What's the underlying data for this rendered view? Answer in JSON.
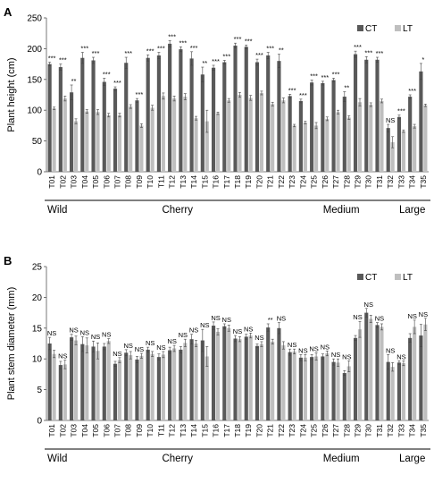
{
  "chart_data": [
    {
      "panel": "A",
      "type": "bar",
      "ylabel": "Plant height (cm)",
      "ylim": [
        0,
        250
      ],
      "yticks": [
        0,
        50,
        100,
        150,
        200,
        250
      ],
      "legend_position": "top-right",
      "categories": [
        "T01",
        "T02",
        "T03",
        "T04",
        "T05",
        "T06",
        "T07",
        "T08",
        "T09",
        "T10",
        "T11",
        "T12",
        "T13",
        "T14",
        "T15",
        "T16",
        "T17",
        "T18",
        "T19",
        "T20",
        "T21",
        "T22",
        "T23",
        "T24",
        "T25",
        "T26",
        "T27",
        "T28",
        "T29",
        "T30",
        "T31",
        "T32",
        "T33",
        "T34",
        "T35"
      ],
      "series": [
        {
          "name": "CT",
          "color": "#595959",
          "values": [
            175,
            170,
            129,
            185,
            181,
            146,
            135,
            177,
            116,
            185,
            189,
            208,
            199,
            184,
            158,
            169,
            178,
            205,
            203,
            178,
            189,
            180,
            123,
            115,
            145,
            144,
            149,
            122,
            191,
            182,
            182,
            71,
            89,
            122,
            163
          ],
          "errors": [
            3,
            5,
            12,
            9,
            5,
            6,
            3,
            9,
            3,
            5,
            5,
            5,
            4,
            11,
            12,
            4,
            3,
            4,
            3,
            5,
            5,
            11,
            3,
            3,
            4,
            3,
            3,
            8,
            5,
            5,
            4,
            6,
            3,
            3,
            13
          ]
        },
        {
          "name": "LT",
          "color": "#bfbfbf",
          "values": [
            103,
            119,
            82,
            98,
            97,
            92,
            92,
            106,
            75,
            104,
            123,
            119,
            122,
            87,
            82,
            95,
            116,
            125,
            120,
            128,
            110,
            116,
            75,
            80,
            75,
            86,
            97,
            88,
            113,
            109,
            115,
            48,
            66,
            74,
            108
          ],
          "errors": [
            2,
            4,
            4,
            3,
            4,
            3,
            3,
            3,
            3,
            4,
            5,
            4,
            5,
            3,
            18,
            2,
            3,
            4,
            4,
            3,
            3,
            4,
            2,
            2,
            5,
            3,
            3,
            3,
            6,
            3,
            3,
            9,
            2,
            3,
            2
          ]
        }
      ],
      "significance": [
        "***",
        "***",
        "**",
        "***",
        "***",
        "***",
        "***",
        "***",
        "***",
        "***",
        "***",
        "***",
        "***",
        "***",
        "**",
        "***",
        "***",
        "***",
        "***",
        "***",
        "***",
        "**",
        "***",
        "***",
        "***",
        "***",
        "***",
        "**",
        "***",
        "***",
        "***",
        "NS",
        "***",
        "***",
        "*"
      ],
      "groups": [
        {
          "label": "Wild",
          "start": 0,
          "end": 1
        },
        {
          "label": "Cherry",
          "start": 2,
          "end": 21
        },
        {
          "label": "Medium",
          "start": 22,
          "end": 31
        },
        {
          "label": "Large",
          "start": 32,
          "end": 34
        }
      ]
    },
    {
      "panel": "B",
      "type": "bar",
      "ylabel": "Plant stem diameter (mm)",
      "ylim": [
        0,
        25
      ],
      "yticks": [
        0,
        5,
        10,
        15,
        20,
        25
      ],
      "legend_position": "top-right",
      "categories": [
        "T01",
        "T02",
        "T03",
        "T04",
        "T05",
        "T06",
        "T07",
        "T08",
        "T09",
        "T10",
        "T11",
        "T12",
        "T13",
        "T14",
        "T15",
        "T16",
        "T17",
        "T18",
        "T19",
        "T20",
        "T21",
        "T22",
        "T23",
        "T24",
        "T25",
        "T26",
        "T27",
        "T28",
        "T29",
        "T30",
        "T31",
        "T32",
        "T33",
        "T34",
        "T35"
      ],
      "series": [
        {
          "name": "CT",
          "color": "#595959",
          "values": [
            12.5,
            9.0,
            13.5,
            12.4,
            12.0,
            12.0,
            9.2,
            11.0,
            9.9,
            11.5,
            10.3,
            11.4,
            11.5,
            13.2,
            13.0,
            15.4,
            15.3,
            13.3,
            13.6,
            12.1,
            15.1,
            15.0,
            11.1,
            10.2,
            10.3,
            10.4,
            9.5,
            7.7,
            13.4,
            17.5,
            15.5,
            9.5,
            9.4,
            13.4,
            13.8
          ],
          "errors": [
            1.0,
            0.6,
            0.5,
            1.2,
            0.9,
            0.5,
            0.4,
            0.5,
            0.5,
            0.4,
            0.5,
            0.5,
            0.5,
            0.8,
            1.8,
            0.6,
            0.4,
            0.5,
            0.4,
            0.3,
            0.6,
            0.9,
            0.5,
            0.5,
            0.4,
            0.4,
            0.5,
            0.4,
            0.4,
            0.7,
            0.4,
            1.2,
            0.3,
            0.7,
            1.8
          ]
        },
        {
          "name": "LT",
          "color": "#bfbfbf",
          "values": [
            10.8,
            9.1,
            13.0,
            12.2,
            11.3,
            12.9,
            9.8,
            10.6,
            10.5,
            10.8,
            10.7,
            11.7,
            12.6,
            12.5,
            10.4,
            14.4,
            15.0,
            13.2,
            13.8,
            12.4,
            12.8,
            12.2,
            11.2,
            10.2,
            10.4,
            10.9,
            9.4,
            8.8,
            14.8,
            16.5,
            15.2,
            8.7,
            9.3,
            15.2,
            15.6
          ],
          "errors": [
            0.6,
            0.7,
            0.7,
            1.2,
            1.3,
            0.4,
            0.4,
            0.6,
            0.4,
            0.4,
            0.5,
            0.5,
            0.6,
            0.5,
            1.6,
            0.5,
            0.5,
            0.4,
            0.4,
            0.4,
            0.4,
            0.6,
            0.4,
            0.5,
            0.6,
            0.4,
            0.6,
            0.9,
            1.3,
            0.6,
            0.5,
            0.7,
            0.4,
            1.1,
            1.0
          ]
        }
      ],
      "significance": [
        "NS",
        "NS",
        "NS",
        "NS",
        "NS",
        "NS",
        "NS",
        "NS",
        "NS",
        "NS",
        "NS",
        "NS",
        "NS",
        "NS",
        "NS",
        "NS",
        "NS",
        "NS",
        "NS",
        "NS",
        "**",
        "NS",
        "NS",
        "NS",
        "NS",
        "NS",
        "NS",
        "NS",
        "NS",
        "NS",
        "NS",
        "NS",
        "NS",
        "NS",
        "NS"
      ],
      "groups": [
        {
          "label": "Wild",
          "start": 0,
          "end": 1
        },
        {
          "label": "Cherry",
          "start": 2,
          "end": 21
        },
        {
          "label": "Medium",
          "start": 22,
          "end": 31
        },
        {
          "label": "Large",
          "start": 32,
          "end": 34
        }
      ]
    }
  ]
}
